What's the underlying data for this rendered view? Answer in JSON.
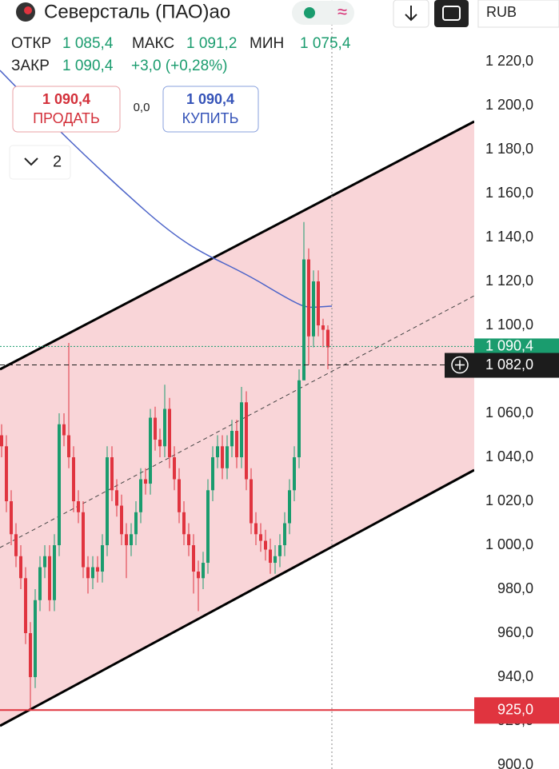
{
  "header": {
    "title": "Северсталь (ПАО)ао",
    "currency": "RUB",
    "open_label": "ОТКР",
    "open": "1 085,4",
    "high_label": "МАКС",
    "high": "1 091,2",
    "low_label": "МИН",
    "low": "1 075,4",
    "close_label": "ЗАКР",
    "close": "1 090,4",
    "change": "+3,0 (+0,28%)",
    "sell_price": "1 090,4",
    "sell_label": "ПРОДАТЬ",
    "spread": "0,0",
    "buy_price": "1 090,4",
    "buy_label": "КУПИТЬ",
    "indicators_count": "2"
  },
  "chart_data": {
    "type": "candlestick",
    "up_color": "#1a9c6e",
    "down_color": "#e0343f",
    "open": [
      1050,
      1045,
      1020,
      1005,
      995,
      985,
      960,
      940,
      975,
      990,
      995,
      975,
      1000,
      1055,
      1050,
      1040,
      1020,
      1015,
      990,
      985,
      990,
      988,
      1000,
      1040,
      1025,
      1018,
      1005,
      1000,
      1005,
      1015,
      1030,
      1028,
      1058,
      1048,
      1045,
      1062,
      1040,
      1030,
      1015,
      1005,
      1000,
      988,
      985,
      992,
      1025,
      1040,
      1045,
      1035,
      1045,
      1052,
      1040,
      1065,
      1030,
      1010,
      1005,
      1002,
      998,
      992,
      995,
      1000,
      1010,
      1025,
      1040,
      1075,
      1130,
      1095,
      1120,
      1100,
      1098
    ],
    "high": [
      1055,
      1050,
      1025,
      1010,
      1000,
      990,
      965,
      980,
      995,
      1000,
      1000,
      1005,
      1060,
      1060,
      1092,
      1045,
      1025,
      1020,
      995,
      995,
      995,
      1005,
      1045,
      1045,
      1030,
      1023,
      1010,
      1010,
      1020,
      1035,
      1035,
      1062,
      1063,
      1053,
      1073,
      1067,
      1045,
      1035,
      1020,
      1010,
      1005,
      993,
      997,
      1030,
      1045,
      1050,
      1050,
      1050,
      1057,
      1057,
      1072,
      1070,
      1035,
      1015,
      1010,
      1007,
      1003,
      1000,
      1005,
      1015,
      1030,
      1045,
      1080,
      1147,
      1135,
      1125,
      1125,
      1103,
      1100
    ],
    "low": [
      1040,
      1015,
      1000,
      990,
      980,
      955,
      925,
      935,
      970,
      985,
      970,
      970,
      995,
      1045,
      1035,
      1015,
      1010,
      985,
      978,
      980,
      983,
      983,
      995,
      1020,
      1013,
      1000,
      985,
      995,
      1000,
      1010,
      1023,
      1023,
      1043,
      1040,
      1040,
      1035,
      1025,
      1010,
      1000,
      995,
      978,
      970,
      980,
      987,
      1020,
      1035,
      1030,
      1030,
      1040,
      1035,
      1035,
      1025,
      1005,
      1000,
      997,
      993,
      987,
      987,
      990,
      995,
      1005,
      1020,
      1035,
      1075,
      1082,
      1090,
      1095,
      1090,
      1080
    ],
    "close": [
      1045,
      1020,
      1005,
      995,
      985,
      960,
      940,
      975,
      990,
      995,
      975,
      1000,
      1055,
      1050,
      1040,
      1020,
      1015,
      990,
      985,
      990,
      988,
      1000,
      1040,
      1025,
      1018,
      1005,
      1000,
      1005,
      1015,
      1030,
      1028,
      1058,
      1048,
      1045,
      1062,
      1040,
      1030,
      1015,
      1005,
      1000,
      988,
      985,
      992,
      1025,
      1040,
      1045,
      1035,
      1045,
      1052,
      1040,
      1065,
      1030,
      1010,
      1005,
      1002,
      998,
      992,
      995,
      1000,
      1010,
      1025,
      1040,
      1075,
      1130,
      1095,
      1120,
      1100,
      1098,
      1090
    ],
    "ylim": [
      898.2,
      1248
    ],
    "yticks": [
      {
        "value": 900,
        "label": "900,0"
      },
      {
        "value": 920,
        "label": "920,0"
      },
      {
        "value": 940,
        "label": "940,0"
      },
      {
        "value": 960,
        "label": "960,0"
      },
      {
        "value": 980,
        "label": "980,0"
      },
      {
        "value": 1000,
        "label": "1 000,0"
      },
      {
        "value": 1020,
        "label": "1 020,0"
      },
      {
        "value": 1040,
        "label": "1 040,0"
      },
      {
        "value": 1060,
        "label": "1 060,0"
      },
      {
        "value": 1080,
        "label": "1 080,0"
      },
      {
        "value": 1100,
        "label": "1 100,0"
      },
      {
        "value": 1120,
        "label": "1 120,0"
      },
      {
        "value": 1140,
        "label": "1 140,0"
      },
      {
        "value": 1160,
        "label": "1 160,0"
      },
      {
        "value": 1180,
        "label": "1 180,0"
      },
      {
        "value": 1200,
        "label": "1 200,0"
      },
      {
        "value": 1220,
        "label": "1 220,0"
      }
    ],
    "price_lines": [
      {
        "value": 1090.4,
        "label": "1 090,4",
        "color": "#1a9c6e"
      },
      {
        "value": 1082,
        "label": "1 082,0",
        "color": "#1c1c1c"
      },
      {
        "value": 925,
        "label": "925,0",
        "color": "#e0343f"
      }
    ]
  }
}
